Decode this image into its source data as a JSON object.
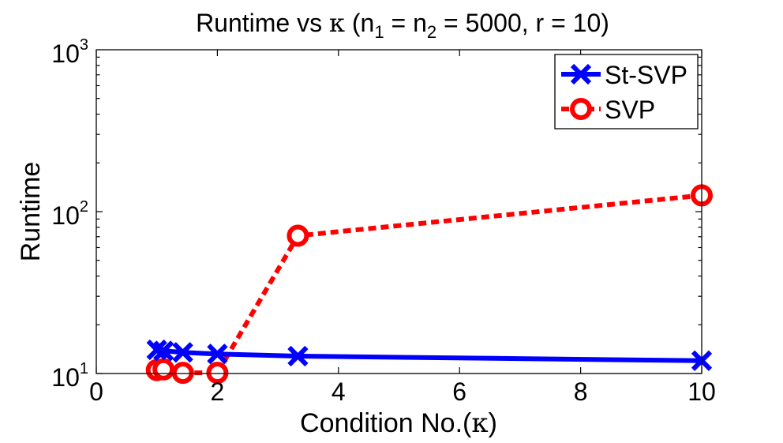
{
  "chart_data": {
    "type": "line",
    "title": {
      "prefix": "Runtime vs ",
      "kappa": "κ",
      "open": " (n",
      "sub1": "1",
      "mid": " = n",
      "sub2": "2",
      "suffix": " = 5000, r = 10)"
    },
    "xlabel": {
      "prefix": "Condition No.(",
      "kappa": "κ",
      "suffix": ")"
    },
    "ylabel": "Runtime",
    "y_scale": "log",
    "xlim": [
      0,
      10
    ],
    "ylim": [
      10,
      1000
    ],
    "x_ticks": [
      {
        "value": 0,
        "label": "0"
      },
      {
        "value": 2,
        "label": "2"
      },
      {
        "value": 4,
        "label": "4"
      },
      {
        "value": 6,
        "label": "6"
      },
      {
        "value": 8,
        "label": "8"
      },
      {
        "value": 10,
        "label": "10"
      }
    ],
    "y_ticks": [
      {
        "value": 10,
        "base": "10",
        "exp": "1"
      },
      {
        "value": 100,
        "base": "10",
        "exp": "2"
      },
      {
        "value": 1000,
        "base": "10",
        "exp": "3"
      }
    ],
    "legend_position": "top-right",
    "grid": false,
    "series": [
      {
        "name": "St-SVP",
        "color": "#0000ff",
        "line_style": "solid",
        "marker": "x",
        "x": [
          1,
          1.11,
          1.43,
          2,
          3.33,
          10
        ],
        "y": [
          14.0,
          13.8,
          13.5,
          13.2,
          12.8,
          12.0
        ]
      },
      {
        "name": "SVP",
        "color": "#ff0000",
        "line_style": "dashed",
        "marker": "o",
        "x": [
          1,
          1.11,
          1.43,
          2,
          3.33,
          10
        ],
        "y": [
          10.5,
          10.6,
          10.1,
          10.1,
          71,
          126
        ]
      }
    ]
  }
}
